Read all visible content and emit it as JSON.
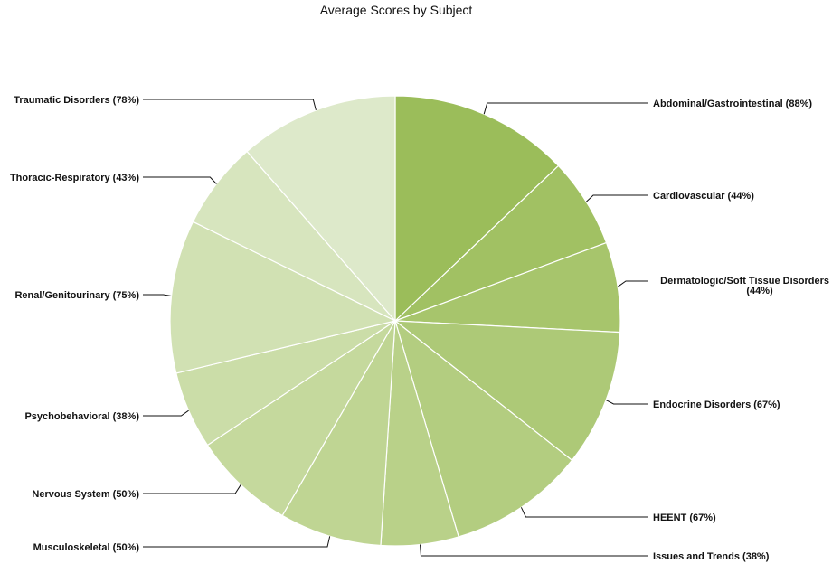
{
  "chart_data": {
    "type": "pie",
    "title": "Average Scores by Subject",
    "start": "top",
    "direction": "clockwise",
    "legend": "none",
    "slices": [
      {
        "label": "Abdominal/Gastrointestinal",
        "value": 88,
        "display": "(88%)",
        "color": "#9bbd5a"
      },
      {
        "label": "Cardiovascular",
        "value": 44,
        "display": "(44%)",
        "color": "#a1c163"
      },
      {
        "label": "Dermatologic/Soft Tissue Disorders",
        "value": 44,
        "display": "(44%)",
        "color": "#a7c56c"
      },
      {
        "label": "Endocrine Disorders",
        "value": 67,
        "display": "(67%)",
        "color": "#adc977"
      },
      {
        "label": "HEENT",
        "value": 67,
        "display": "(67%)",
        "color": "#b3cd80"
      },
      {
        "label": "Issues and Trends",
        "value": 38,
        "display": "(38%)",
        "color": "#b9d189"
      },
      {
        "label": "Musculoskeletal",
        "value": 50,
        "display": "(50%)",
        "color": "#bfd593"
      },
      {
        "label": "Nervous System",
        "value": 50,
        "display": "(50%)",
        "color": "#c5d99d"
      },
      {
        "label": "Psychobehavioral",
        "value": 38,
        "display": "(38%)",
        "color": "#cbdda8"
      },
      {
        "label": "Renal/Genitourinary",
        "value": 75,
        "display": "(75%)",
        "color": "#d1e1b3"
      },
      {
        "label": "Thoracic-Respiratory",
        "value": 43,
        "display": "(43%)",
        "color": "#d7e5be"
      },
      {
        "label": "Traumatic Disorders",
        "value": 78,
        "display": "(78%)",
        "color": "#dde9ca"
      }
    ]
  }
}
